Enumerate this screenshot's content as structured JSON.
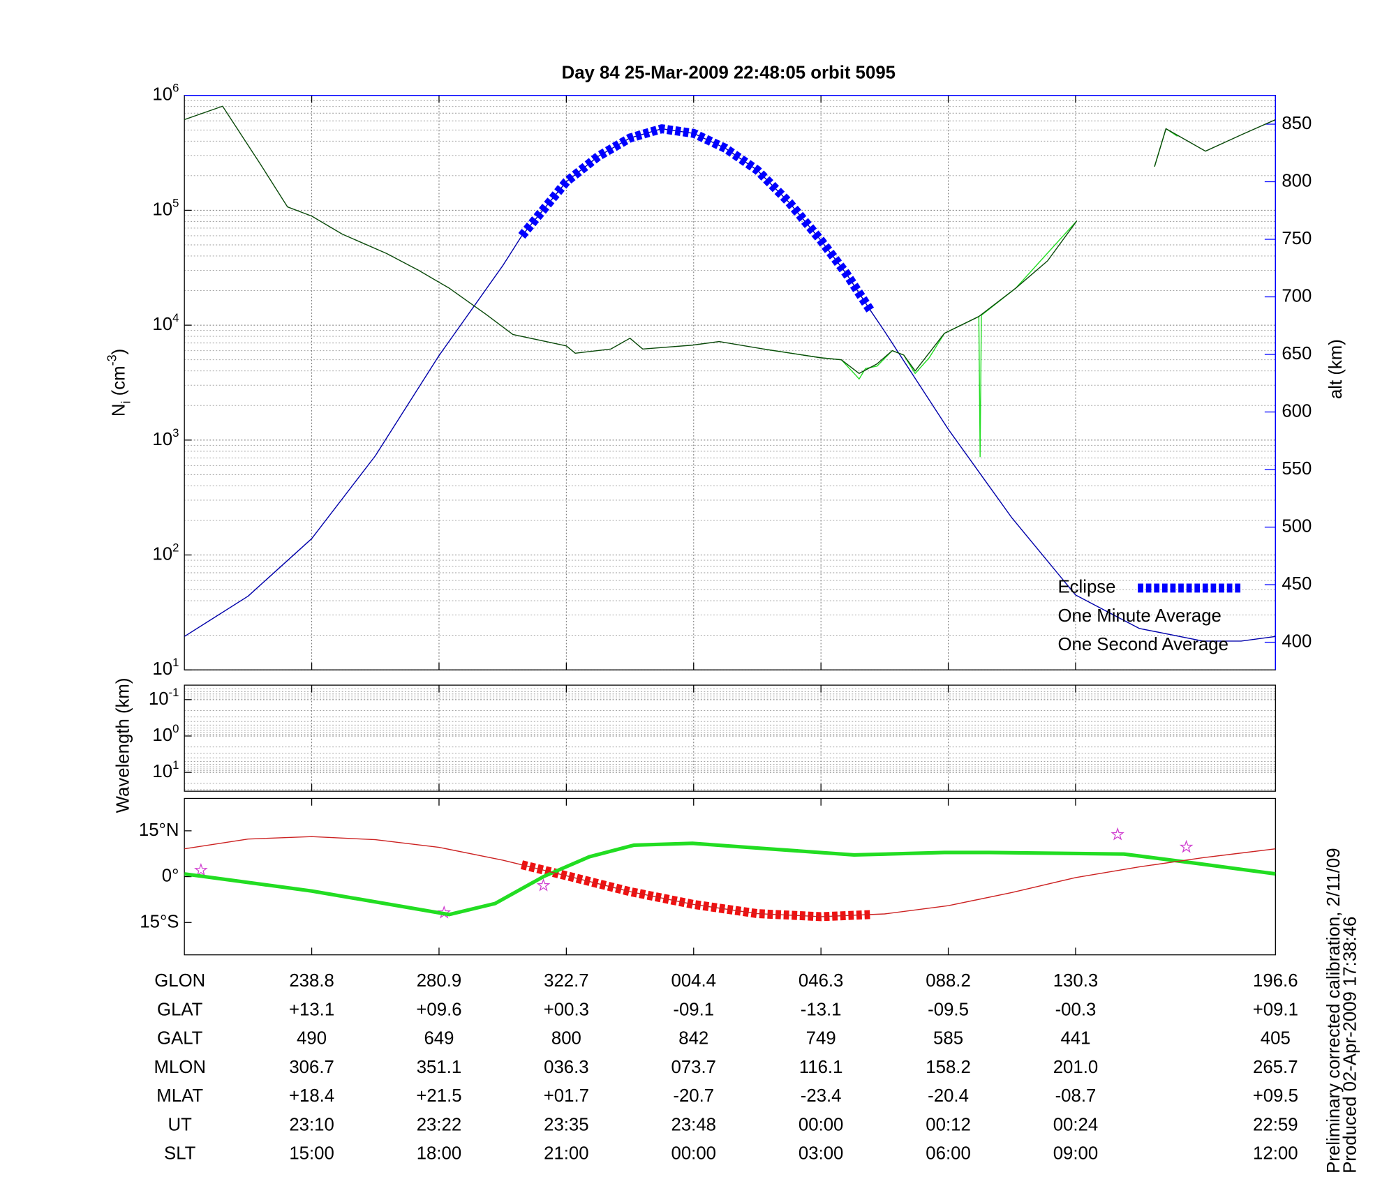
{
  "chart_data": [
    {
      "type": "line",
      "title": "Day 84  25-Mar-2009 22:48:05   orbit 5095",
      "ylabel": {
        "text": "N",
        "sub": "i",
        "unit": " (cm",
        "unit_sup": "-3",
        "end": ")"
      },
      "y2label": "alt (km)",
      "y2color": "#0000ff",
      "log": true,
      "grid": true,
      "legend": "lower right",
      "xlim": [
        0,
        8.57
      ],
      "xticks": [
        1,
        2,
        3,
        4,
        5,
        6,
        7
      ],
      "ylim": [
        10,
        1000000
      ],
      "yticks": [
        {
          "value": 10,
          "label": "10",
          "sup": "1"
        },
        {
          "value": 100,
          "label": "10",
          "sup": "2"
        },
        {
          "value": 1000,
          "label": "10",
          "sup": "3"
        },
        {
          "value": 10000,
          "label": "10",
          "sup": "4"
        },
        {
          "value": 100000,
          "label": "10",
          "sup": "5"
        },
        {
          "value": 1000000,
          "label": "10",
          "sup": "6"
        }
      ],
      "yminor": [
        20,
        30,
        40,
        50,
        60,
        70,
        80,
        90,
        200,
        300,
        400,
        500,
        600,
        700,
        800,
        900,
        2000,
        3000,
        4000,
        5000,
        6000,
        7000,
        8000,
        9000,
        20000,
        30000,
        40000,
        50000,
        60000,
        70000,
        80000,
        90000,
        200000,
        300000,
        400000,
        500000,
        600000,
        700000,
        800000,
        900000
      ],
      "y2lim": [
        376,
        875
      ],
      "y2ticks": [
        400,
        450,
        500,
        550,
        600,
        650,
        700,
        750,
        800,
        850
      ],
      "series": [
        {
          "name": "Eclipse",
          "color": "#0000ff",
          "axis": "y2",
          "style": "thick-dashed",
          "x": [
            2.65,
            3,
            3.25,
            3.5,
            3.75,
            4,
            4.25,
            4.5,
            4.75,
            5,
            5.2,
            5.39
          ],
          "values": [
            753,
            800,
            822,
            838,
            846,
            842,
            829,
            810,
            782,
            749,
            720,
            688
          ]
        },
        {
          "name": "One Minute Average",
          "color": "#0b4a0b",
          "label_color": "#000000",
          "style": "thin",
          "x": [
            0,
            0.3,
            0.6,
            0.81,
            1,
            1.24,
            1.59,
            1.84,
            2.08,
            2.37,
            2.58,
            3,
            3.07,
            3.35,
            3.5,
            3.6,
            3.99,
            4.2,
            4.55,
            5,
            5.16,
            5.3,
            5.44,
            5.56,
            5.65,
            5.74,
            5.97,
            6.24,
            6.53,
            6.78,
            7.01,
            7.3,
            7.62,
            7.71,
            8.02,
            8.3,
            8.57
          ],
          "values": [
            615000,
            805000,
            249000,
            107000,
            89000,
            62000,
            42000,
            30000,
            21000,
            12400,
            8300,
            6600,
            5700,
            6200,
            7700,
            6200,
            6700,
            7200,
            6200,
            5200,
            5000,
            3800,
            4600,
            6000,
            5500,
            4000,
            8500,
            11900,
            21000,
            36300,
            81000,
            null,
            240000,
            513000,
            327000,
            453000,
            615000
          ]
        },
        {
          "name": "One Second Average",
          "color": "#22dd22",
          "style": "thin",
          "x": [
            4.55,
            5,
            5.16,
            5.28,
            5.3,
            5.35,
            5.44,
            5.56,
            5.65,
            5.74,
            5.85,
            5.97,
            6.24,
            6.25,
            6.26,
            6.53,
            7.01,
            7.3,
            7.62,
            7.71,
            7.8
          ],
          "values": [
            6200,
            5200,
            5000,
            3600,
            3400,
            4200,
            4400,
            6000,
            5500,
            3800,
            5200,
            8500,
            11900,
            716,
            12200,
            21000,
            81000,
            null,
            240000,
            513000,
            440000
          ]
        },
        {
          "color": "#0000aa",
          "axis": "y2",
          "style": "thin",
          "x": [
            0,
            0.5,
            1,
            1.5,
            2,
            2.5,
            2.65,
            3,
            3.25,
            3.5,
            3.75,
            4,
            4.25,
            4.5,
            4.75,
            5,
            5.2,
            5.39,
            5.5,
            6,
            6.5,
            7,
            7.5,
            8,
            8.3,
            8.57
          ],
          "values": [
            405,
            440,
            490,
            562,
            649,
            727,
            753,
            800,
            822,
            838,
            846,
            842,
            829,
            810,
            782,
            749,
            720,
            688,
            670,
            585,
            508,
            441,
            412,
            401,
            401,
            405
          ]
        }
      ]
    },
    {
      "type": "spectrogram",
      "ylabel": "Wavelength (km)",
      "log": true,
      "grid": true,
      "xlim": [
        0,
        8.57
      ],
      "xticks": [
        1,
        2,
        3,
        4,
        5,
        6,
        7
      ],
      "ylim": [
        33,
        0.04
      ],
      "yticks": [
        {
          "value": 0.1,
          "label": "10",
          "sup": "-1"
        },
        {
          "value": 1,
          "label": "10",
          "sup": "0"
        },
        {
          "value": 10,
          "label": "10",
          "sup": "1"
        }
      ],
      "yminor": [
        0.05,
        0.06,
        0.07,
        0.08,
        0.09,
        0.2,
        0.3,
        0.4,
        0.5,
        0.6,
        0.7,
        0.8,
        0.9,
        2,
        3,
        4,
        5,
        6,
        7,
        8,
        9,
        20,
        30
      ]
    },
    {
      "type": "map",
      "grid": false,
      "xlim": [
        0,
        8.57
      ],
      "xticks": [
        1,
        2,
        3,
        4,
        5,
        6,
        7
      ],
      "ylim": [
        -25.6,
        25.6
      ],
      "yticks": [
        {
          "value": 15,
          "label": "15°N"
        },
        {
          "value": 0,
          "label": "0°"
        },
        {
          "value": -15,
          "label": "15°S"
        }
      ],
      "series": [
        {
          "color": "#cc2222",
          "style": "thin",
          "x": [
            0,
            0.5,
            1,
            1.5,
            2,
            2.5,
            3,
            3.5,
            4,
            4.5,
            5,
            5.5,
            6,
            6.5,
            7,
            7.5,
            8,
            8.57
          ],
          "values": [
            9.1,
            12.3,
            13.1,
            12.1,
            9.6,
            5.4,
            0.3,
            -4.9,
            -9.1,
            -12.1,
            -13.1,
            -12.2,
            -9.5,
            -5.2,
            -0.3,
            3.2,
            6.2,
            9.1
          ]
        },
        {
          "color": "#22dd22",
          "style": "thick",
          "x": [
            0,
            1,
            2.08,
            2.44,
            2.82,
            3.18,
            3.53,
            3.99,
            4.49,
            5.26,
            5.97,
            6.32,
            7.38,
            7.94,
            8.57
          ],
          "values": [
            0.9,
            -4.7,
            -12.4,
            -8.8,
            0,
            6.5,
            10.3,
            10.9,
            9.4,
            7.1,
            7.9,
            7.9,
            7.4,
            4.4,
            0.9
          ]
        },
        {
          "color": "#ee1111",
          "style": "thick-dashed",
          "x": [
            2.65,
            3,
            3.5,
            4,
            4.5,
            5,
            5.39
          ],
          "values": [
            3.9,
            0.3,
            -4.9,
            -9.1,
            -12.1,
            -13.1,
            -12.4
          ]
        },
        {
          "color": "#d040d0",
          "style": "star",
          "x": [
            0.13,
            2.04,
            2.82,
            7.33,
            7.87
          ],
          "values": [
            2.1,
            -11.8,
            -2.9,
            13.8,
            9.7
          ]
        }
      ]
    }
  ],
  "orbit_table": {
    "rows": [
      {
        "label": "GLON",
        "values": [
          "238.8",
          "280.9",
          "322.7",
          "004.4",
          "046.3",
          "088.2",
          "130.3",
          "196.6"
        ]
      },
      {
        "label": "GLAT",
        "values": [
          "+13.1",
          "+09.6",
          "+00.3",
          "-09.1",
          "-13.1",
          "-09.5",
          "-00.3",
          "+09.1"
        ]
      },
      {
        "label": "GALT",
        "values": [
          "490",
          "649",
          "800",
          "842",
          "749",
          "585",
          "441",
          "405"
        ]
      },
      {
        "label": "MLON",
        "values": [
          "306.7",
          "351.1",
          "036.3",
          "073.7",
          "116.1",
          "158.2",
          "201.0",
          "265.7"
        ]
      },
      {
        "label": "MLAT",
        "values": [
          "+18.4",
          "+21.5",
          "+01.7",
          "-20.7",
          "-23.4",
          "-20.4",
          "-08.7",
          "+09.5"
        ]
      },
      {
        "label": "UT",
        "values": [
          "23:10",
          "23:22",
          "23:35",
          "23:48",
          "00:00",
          "00:12",
          "00:24",
          "22:59"
        ]
      },
      {
        "label": "SLT",
        "values": [
          "15:00",
          "18:00",
          "21:00",
          "00:00",
          "03:00",
          "06:00",
          "09:00",
          "12:00"
        ]
      }
    ]
  },
  "notes": [
    "Preliminary corrected calibration, 2/11/09",
    "Produced 02-Apr-2009 17:38:46"
  ]
}
